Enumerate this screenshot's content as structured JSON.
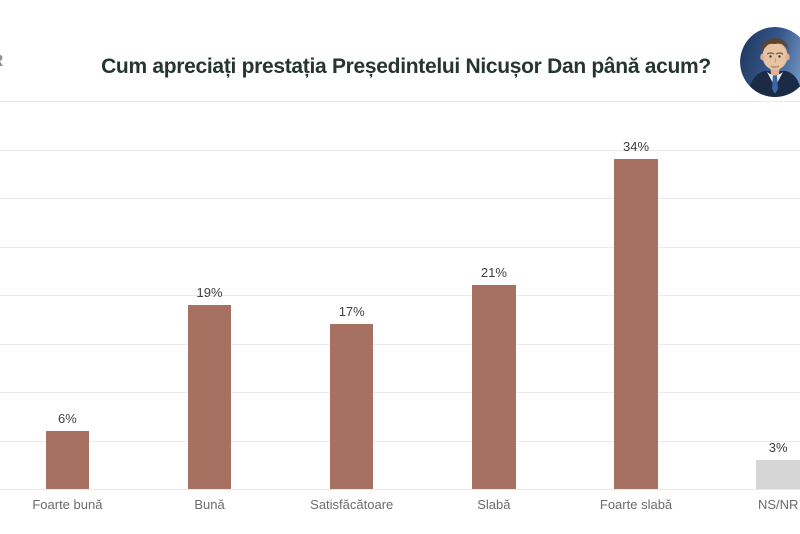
{
  "header": {
    "title": "Cum apreciați prestația Președintelui Nicușor Dan până acum?",
    "logo_fragment_top": "(",
    "logo_fragment_r": "R",
    "avatar_subject": "nicusor-dan-portrait"
  },
  "chart_data": {
    "type": "bar",
    "title": "Cum apreciați prestația Președintelui Nicușor Dan până acum?",
    "categories": [
      "Foarte bună",
      "Bună",
      "Satisfăcătoare",
      "Slabă",
      "Foarte slabă",
      "NS/NR"
    ],
    "values": [
      6,
      19,
      17,
      21,
      34,
      3
    ],
    "value_labels": [
      "6%",
      "19%",
      "17%",
      "21%",
      "34%",
      "3%"
    ],
    "bar_colors": [
      "#A67161",
      "#A67161",
      "#A67161",
      "#A67161",
      "#A67161",
      "#D6D6D6"
    ],
    "xlabel": "",
    "ylabel": "",
    "ylim": [
      0,
      40
    ],
    "grid_step": 5,
    "grid": "horizontal",
    "legend_position": "none",
    "colors": {
      "accent_bar": "#A67161",
      "nsnr_bar": "#D6D6D6",
      "title_text": "#26352F",
      "value_label_text": "#3E3E3E",
      "category_label_text": "#6B6B6B",
      "gridline": "#EAEAEA"
    }
  }
}
